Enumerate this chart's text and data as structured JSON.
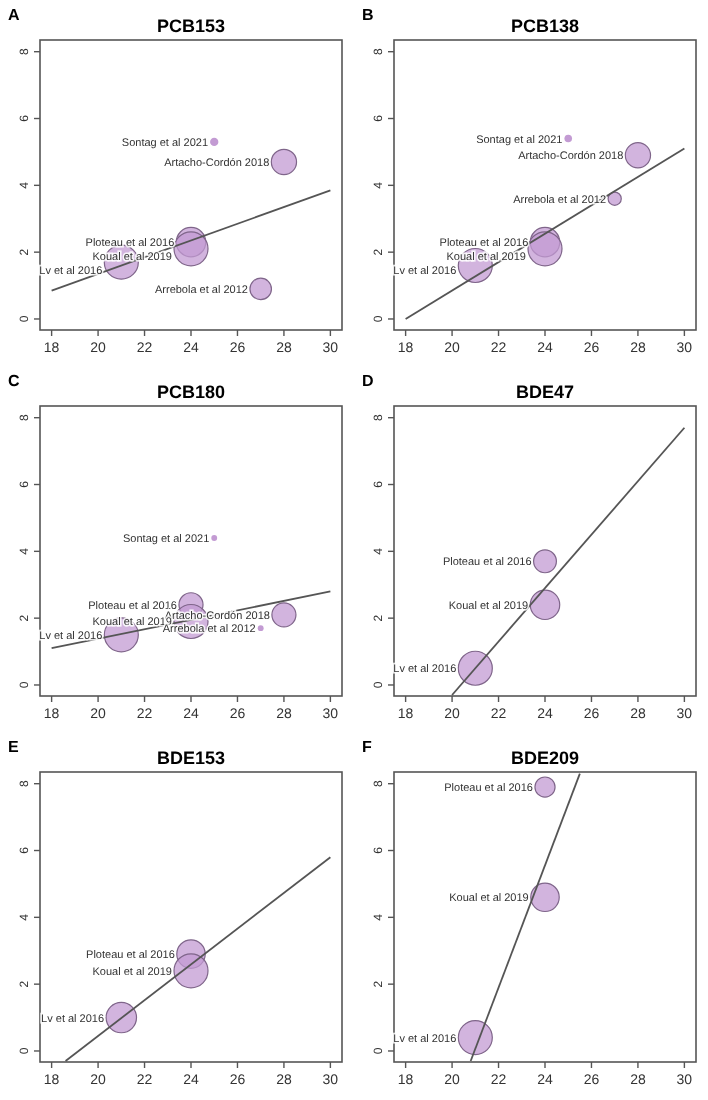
{
  "chart_data": [
    {
      "type": "bubble",
      "title": "PCB153",
      "annotations": [
        "A",
        {
          "text": "Sontag et al 2021",
          "x": 25,
          "y": 5.3
        },
        {
          "text": "Artacho-Cordón 2018",
          "x": 28,
          "y": 4.7
        },
        {
          "text": "Ploteau et al 2016",
          "x": 24,
          "y": 2.3
        },
        {
          "text": "Koual et al 2019",
          "x": 24,
          "y": 2.1
        },
        {
          "text": "Lv et al 2016",
          "x": 21,
          "y": 1.7
        },
        {
          "text": "Arrebola et al 2012",
          "x": 27,
          "y": 0.9
        }
      ],
      "xlim": [
        17.5,
        30.5
      ],
      "ylim": [
        -0.33,
        8.35
      ],
      "xticks": [
        18,
        20,
        22,
        24,
        26,
        28,
        30
      ],
      "yticks": [
        0,
        2,
        4,
        6,
        8
      ],
      "series": [
        {
          "type": "bubble",
          "color": "#c39bd3",
          "x": [
            25,
            28,
            24,
            24,
            21,
            27
          ],
          "values": [
            5.3,
            4.7,
            2.3,
            2.1,
            1.7,
            0.9
          ],
          "sizes": [
            0.06,
            0.55,
            0.75,
            1,
            1,
            0.4
          ]
        },
        {
          "type": "line",
          "color": "#555555",
          "x": [
            18,
            30
          ],
          "values": [
            0.85,
            3.85
          ]
        }
      ]
    },
    {
      "type": "bubble",
      "title": "PCB138",
      "annotations": [
        "B",
        {
          "text": "Sontag et al 2021",
          "x": 25,
          "y": 5.4
        },
        {
          "text": "Artacho-Cordón 2018",
          "x": 28,
          "y": 4.9
        },
        {
          "text": "Arrebola et al 2012",
          "x": 27,
          "y": 3.6
        },
        {
          "text": "Ploteau et al 2016",
          "x": 24,
          "y": 2.3
        },
        {
          "text": "Koual et al 2019",
          "x": 24,
          "y": 2.1
        },
        {
          "text": "Lv et al 2016",
          "x": 21,
          "y": 1.6
        }
      ],
      "xlim": [
        17.5,
        30.5
      ],
      "ylim": [
        -0.33,
        8.35
      ],
      "xticks": [
        18,
        20,
        22,
        24,
        26,
        28,
        30
      ],
      "yticks": [
        0,
        2,
        4,
        6,
        8
      ],
      "series": [
        {
          "type": "bubble",
          "color": "#c39bd3",
          "x": [
            25,
            28,
            27,
            24,
            24,
            21
          ],
          "values": [
            5.4,
            4.9,
            3.6,
            2.3,
            2.1,
            1.6
          ],
          "sizes": [
            0.05,
            0.55,
            0.15,
            0.75,
            1,
            1
          ]
        },
        {
          "type": "line",
          "color": "#555555",
          "x": [
            18,
            30
          ],
          "values": [
            0,
            5.1
          ]
        }
      ]
    },
    {
      "type": "bubble",
      "title": "PCB180",
      "annotations": [
        "C",
        {
          "text": "Sontag et al 2021",
          "x": 25,
          "y": 4.4
        },
        {
          "text": "Ploteau et al 2016",
          "x": 24,
          "y": 2.4
        },
        {
          "text": "Artacho-Cordón 2018",
          "x": 28,
          "y": 2.1
        },
        {
          "text": "Koual et al 2019",
          "x": 24,
          "y": 1.9
        },
        {
          "text": "Arrebola et al 2012",
          "x": 27,
          "y": 1.7
        },
        {
          "text": "Lv et al 2016",
          "x": 21,
          "y": 1.5
        }
      ],
      "xlim": [
        17.5,
        30.5
      ],
      "ylim": [
        -0.33,
        8.35
      ],
      "xticks": [
        18,
        20,
        22,
        24,
        26,
        28,
        30
      ],
      "yticks": [
        0,
        2,
        4,
        6,
        8
      ],
      "series": [
        {
          "type": "bubble",
          "color": "#c39bd3",
          "x": [
            25,
            24,
            28,
            24,
            27,
            21
          ],
          "values": [
            4.4,
            2.4,
            2.1,
            1.9,
            1.7,
            1.5
          ],
          "sizes": [
            0.03,
            0.5,
            0.5,
            1,
            0.03,
            1
          ]
        },
        {
          "type": "line",
          "color": "#555555",
          "x": [
            18,
            30
          ],
          "values": [
            1.1,
            2.8
          ]
        }
      ]
    },
    {
      "type": "bubble",
      "title": "BDE47",
      "annotations": [
        "D",
        {
          "text": "Ploteau et al 2016",
          "x": 24,
          "y": 3.7
        },
        {
          "text": "Koual et al 2019",
          "x": 24,
          "y": 2.4
        },
        {
          "text": "Lv et al 2016",
          "x": 21,
          "y": 0.5
        }
      ],
      "xlim": [
        17.5,
        30.5
      ],
      "ylim": [
        -0.33,
        8.35
      ],
      "xticks": [
        18,
        20,
        22,
        24,
        26,
        28,
        30
      ],
      "yticks": [
        0,
        2,
        4,
        6,
        8
      ],
      "series": [
        {
          "type": "bubble",
          "color": "#c39bd3",
          "x": [
            24,
            24,
            21
          ],
          "values": [
            3.7,
            2.4,
            0.5
          ],
          "sizes": [
            0.45,
            0.75,
            1
          ]
        },
        {
          "type": "line",
          "color": "#555555",
          "x": [
            20,
            30
          ],
          "values": [
            -0.3,
            7.7
          ]
        }
      ]
    },
    {
      "type": "bubble",
      "title": "BDE153",
      "annotations": [
        "E",
        {
          "text": "Ploteau et al 2016",
          "x": 24,
          "y": 2.9
        },
        {
          "text": "Koual et al 2019",
          "x": 24,
          "y": 2.4
        },
        {
          "text": "Lv et al 2016",
          "x": 21,
          "y": 1.0
        }
      ],
      "xlim": [
        17.5,
        30.5
      ],
      "ylim": [
        -0.33,
        8.35
      ],
      "xticks": [
        18,
        20,
        22,
        24,
        26,
        28,
        30
      ],
      "yticks": [
        0,
        2,
        4,
        6,
        8
      ],
      "series": [
        {
          "type": "bubble",
          "color": "#c39bd3",
          "x": [
            24,
            24,
            21
          ],
          "values": [
            2.9,
            2.4,
            1.0
          ],
          "sizes": [
            0.7,
            1,
            0.8
          ]
        },
        {
          "type": "line",
          "color": "#555555",
          "x": [
            18.6,
            30
          ],
          "values": [
            -0.3,
            5.8
          ]
        }
      ]
    },
    {
      "type": "bubble",
      "title": "BDE209",
      "annotations": [
        "F",
        {
          "text": "Ploteau et al 2016",
          "x": 24,
          "y": 7.9
        },
        {
          "text": "Koual et al 2019",
          "x": 24,
          "y": 4.6
        },
        {
          "text": "Lv et al 2016",
          "x": 21,
          "y": 0.4
        }
      ],
      "xlim": [
        17.5,
        30.5
      ],
      "ylim": [
        -0.33,
        8.35
      ],
      "xticks": [
        18,
        20,
        22,
        24,
        26,
        28,
        30
      ],
      "yticks": [
        0,
        2,
        4,
        6,
        8
      ],
      "series": [
        {
          "type": "bubble",
          "color": "#c39bd3",
          "x": [
            24,
            24,
            21
          ],
          "values": [
            7.9,
            4.6,
            0.4
          ],
          "sizes": [
            0.35,
            0.7,
            1
          ]
        },
        {
          "type": "line",
          "color": "#555555",
          "x": [
            20.8,
            25.5
          ],
          "values": [
            -0.3,
            8.3
          ]
        }
      ]
    }
  ]
}
